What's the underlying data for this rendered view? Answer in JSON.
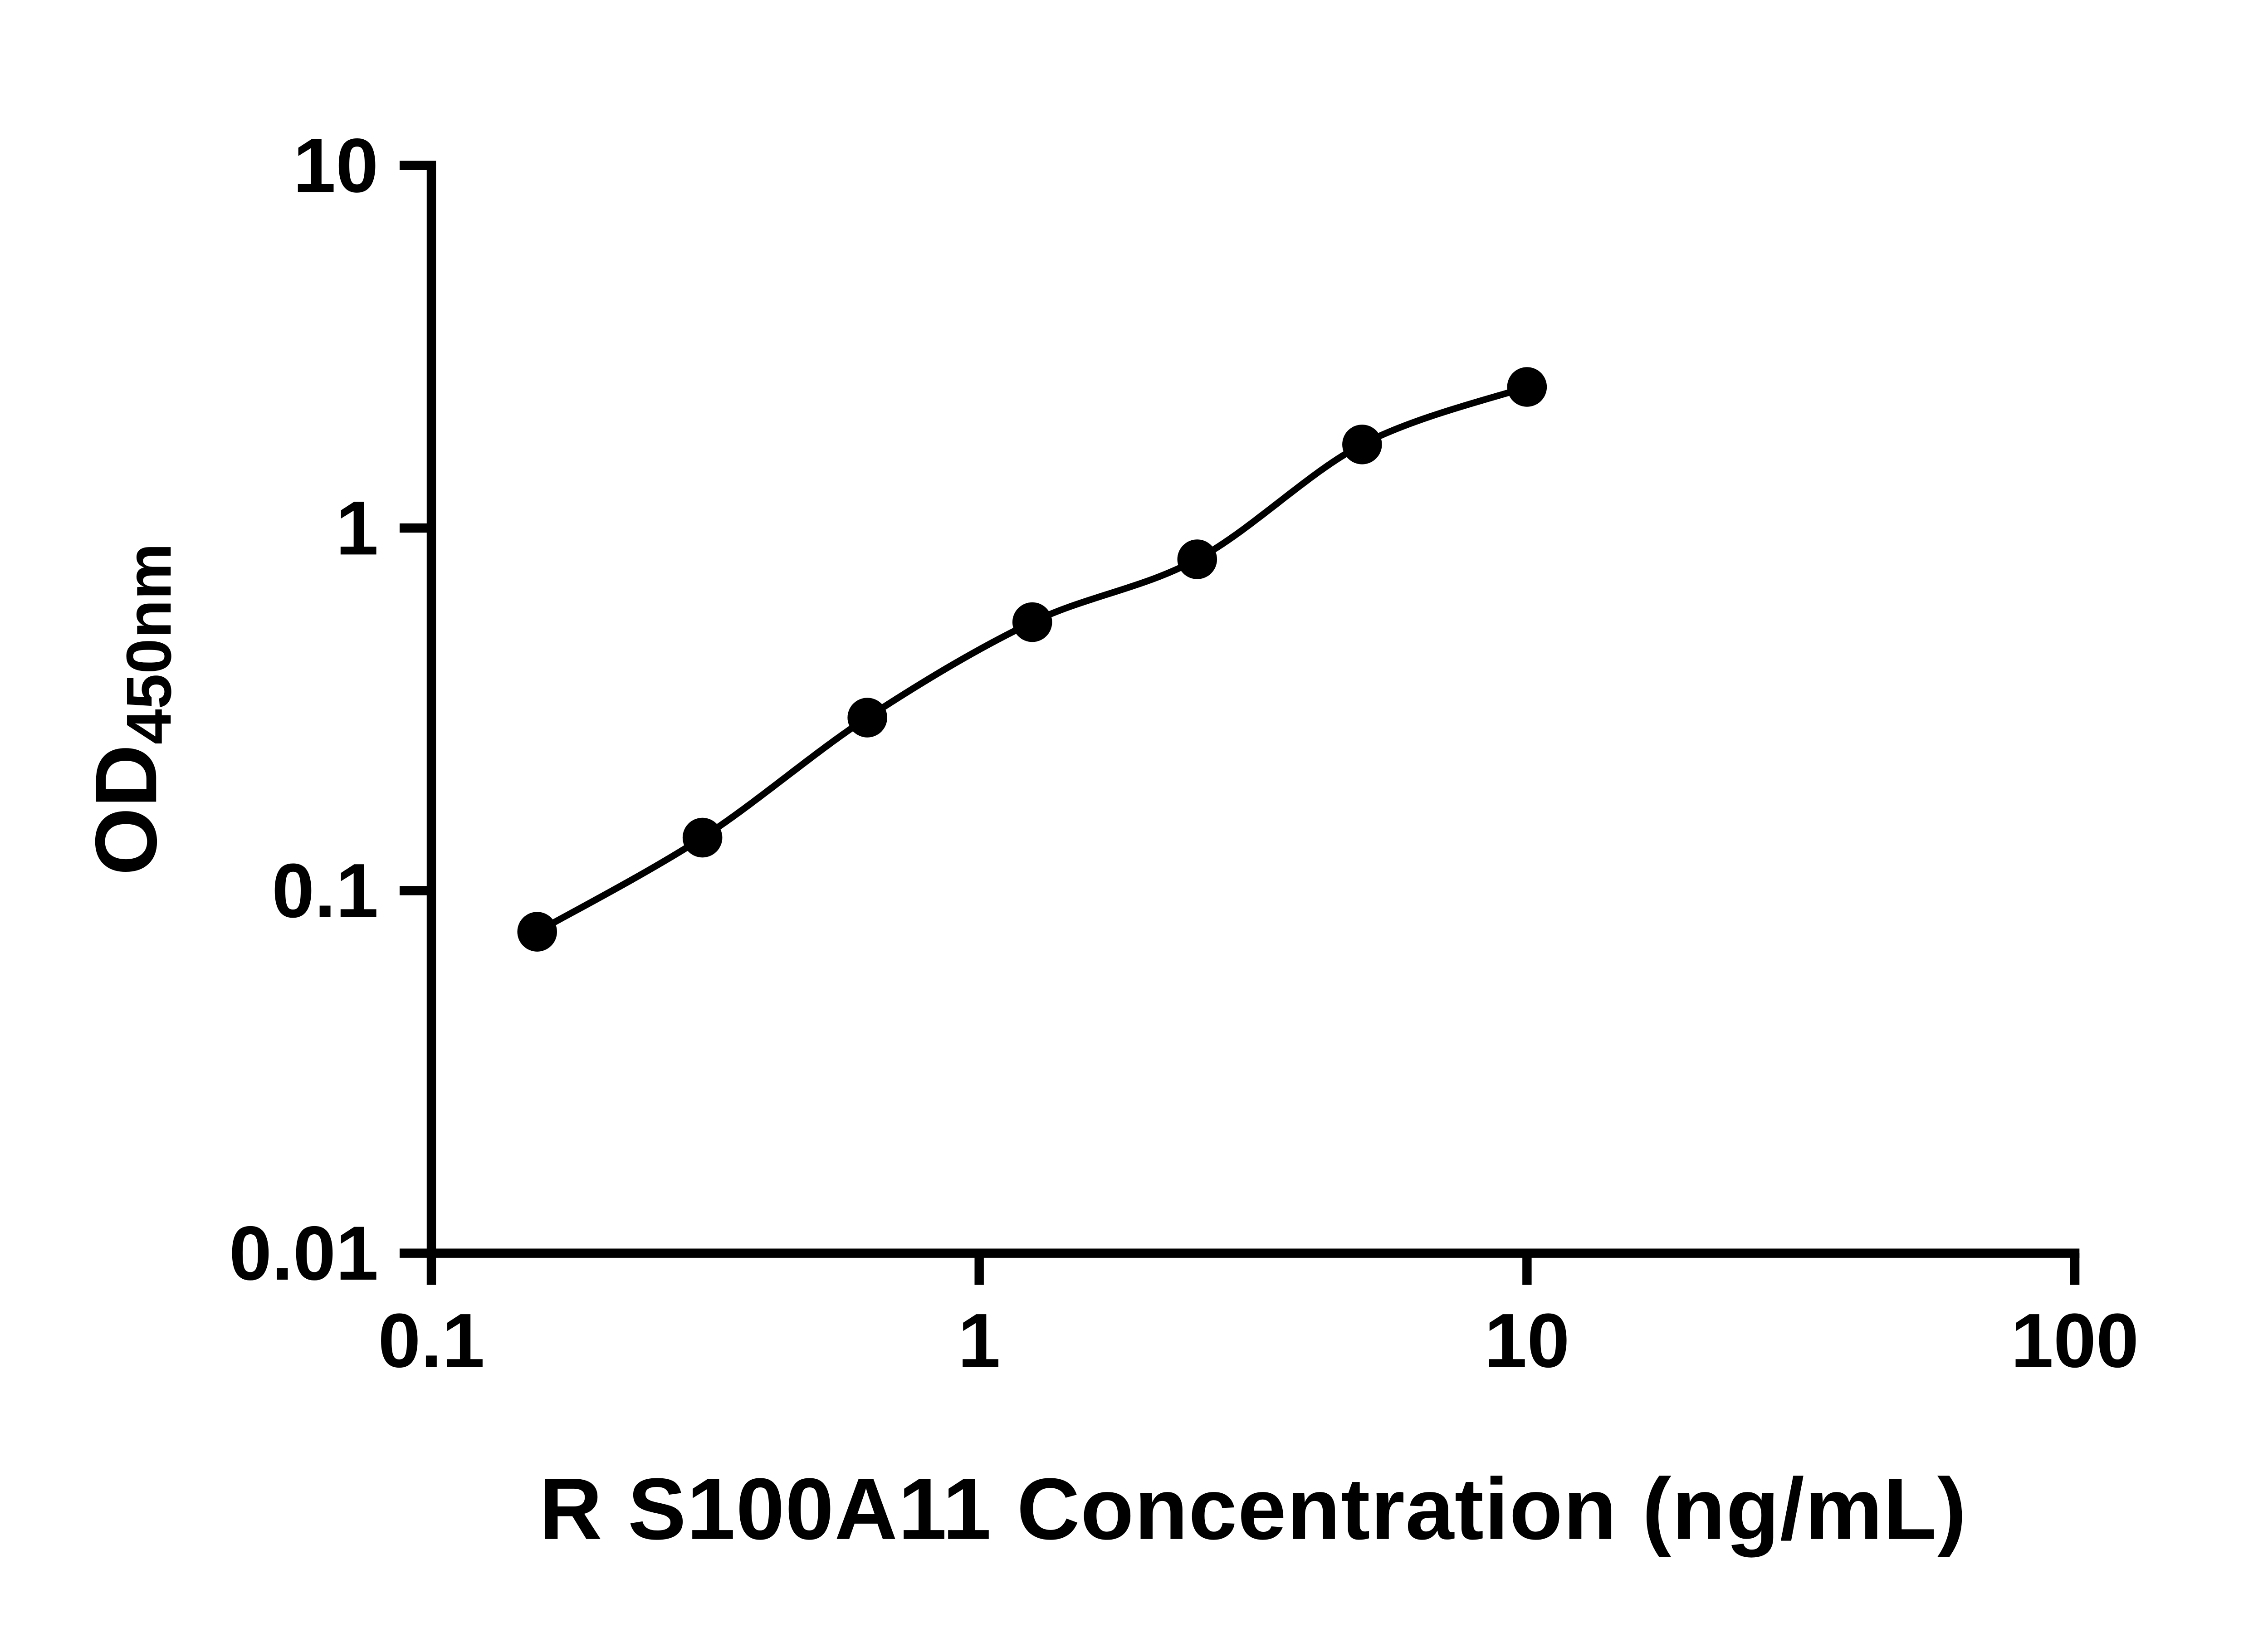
{
  "figure": {
    "background": "#ffffff"
  },
  "chart_data": {
    "type": "scatter",
    "title": "",
    "xlabel": "R S100A11 Concentration (ng/mL)",
    "ylabel_main": "OD",
    "ylabel_sub": "450nm",
    "x_scale": "log",
    "y_scale": "log",
    "xlim": [
      0.1,
      100
    ],
    "ylim": [
      0.01,
      10
    ],
    "grid": false,
    "legend": "none",
    "marker_color": "#000000",
    "line_color": "#000000",
    "axis_color": "#000000",
    "x_ticks": [
      {
        "value": 0.1,
        "label": "0.1"
      },
      {
        "value": 1,
        "label": "1"
      },
      {
        "value": 10,
        "label": "10"
      },
      {
        "value": 100,
        "label": "100"
      }
    ],
    "y_ticks": [
      {
        "value": 0.01,
        "label": "0.01"
      },
      {
        "value": 0.1,
        "label": "0.1"
      },
      {
        "value": 1,
        "label": "1"
      },
      {
        "value": 10,
        "label": "10"
      }
    ],
    "points": [
      {
        "x": 0.156,
        "y": 0.077
      },
      {
        "x": 0.3125,
        "y": 0.14
      },
      {
        "x": 0.625,
        "y": 0.3
      },
      {
        "x": 1.25,
        "y": 0.55
      },
      {
        "x": 2.5,
        "y": 0.82
      },
      {
        "x": 5,
        "y": 1.7
      },
      {
        "x": 10,
        "y": 2.45
      }
    ],
    "curve_style": "smooth-fit-through-points"
  }
}
